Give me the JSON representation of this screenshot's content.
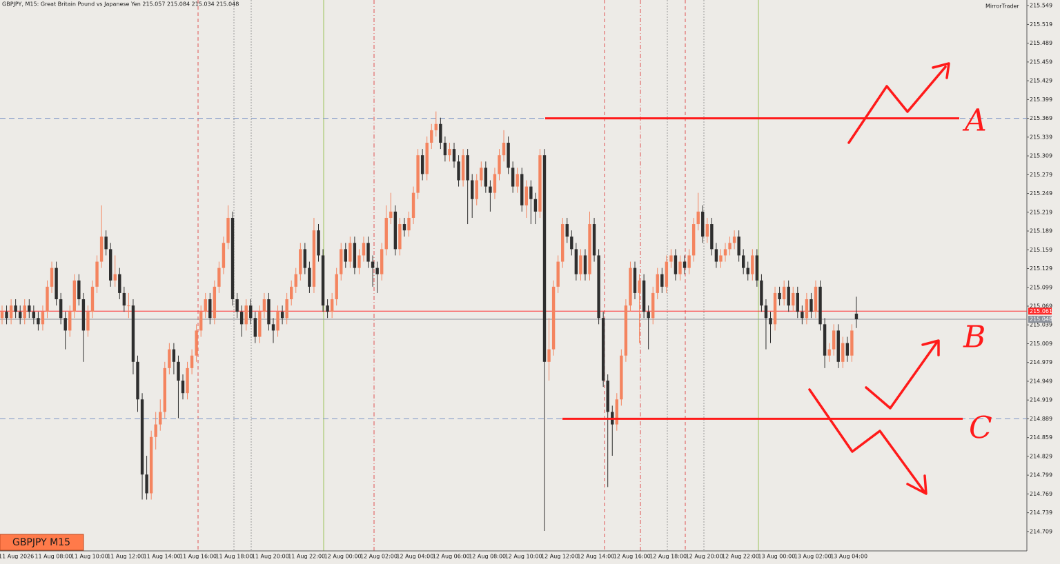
{
  "header": "GBPJPY, M15:  Great Britain Pound vs Japanese Yen  215.057 215.084 215.034 215.048",
  "brand": "MirrorTrader",
  "symbol_tag": "GBPJPY M15",
  "chart_data": {
    "type": "candlestick",
    "up_color": "#f4845f",
    "down_color": "#2e2e2e",
    "ylim": [
      214.678,
      215.558
    ],
    "yticks": [
      215.549,
      215.519,
      215.489,
      215.459,
      215.429,
      215.399,
      215.369,
      215.339,
      215.309,
      215.279,
      215.249,
      215.219,
      215.189,
      215.159,
      215.129,
      215.099,
      215.069,
      215.039,
      215.009,
      214.979,
      214.949,
      214.919,
      214.889,
      214.859,
      214.829,
      214.799,
      214.769,
      214.739,
      214.709
    ],
    "time_labels": [
      "11 Aug 2026",
      "11 Aug 08:00",
      "11 Aug 10:00",
      "11 Aug 12:00",
      "11 Aug 14:00",
      "11 Aug 16:00",
      "11 Aug 18:00",
      "11 Aug 20:00",
      "11 Aug 22:00",
      "12 Aug 00:00",
      "12 Aug 02:00",
      "12 Aug 04:00",
      "12 Aug 06:00",
      "12 Aug 08:00",
      "12 Aug 10:00",
      "12 Aug 12:00",
      "12 Aug 14:00",
      "12 Aug 16:00",
      "12 Aug 18:00",
      "12 Aug 20:00",
      "12 Aug 22:00",
      "13 Aug 00:00",
      "13 Aug 02:00",
      "13 Aug 04:00"
    ],
    "levels": [
      215.369,
      214.889
    ],
    "level_color": "#7b93c6",
    "price_lines": [
      {
        "value": 215.061,
        "color": "#ff2a2a"
      },
      {
        "value": 215.048,
        "color": "#8a8f99"
      }
    ],
    "annotations": [
      {
        "label": "A",
        "value": 215.369
      },
      {
        "label": "B"
      },
      {
        "label": "C",
        "value": 214.889
      }
    ],
    "annotation_color": "#ff1a1a",
    "candles": [
      [
        215.05,
        215.07,
        215.04,
        215.06
      ],
      [
        215.06,
        215.07,
        215.04,
        215.05
      ],
      [
        215.05,
        215.08,
        215.04,
        215.07
      ],
      [
        215.07,
        215.08,
        215.05,
        215.06
      ],
      [
        215.06,
        215.07,
        215.04,
        215.05
      ],
      [
        215.05,
        215.08,
        215.04,
        215.07
      ],
      [
        215.07,
        215.08,
        215.05,
        215.06
      ],
      [
        215.06,
        215.07,
        215.04,
        215.05
      ],
      [
        215.05,
        215.06,
        215.03,
        215.04
      ],
      [
        215.04,
        215.07,
        215.03,
        215.06
      ],
      [
        215.06,
        215.11,
        215.05,
        215.1
      ],
      [
        215.1,
        215.14,
        215.09,
        215.13
      ],
      [
        215.13,
        215.14,
        215.07,
        215.08
      ],
      [
        215.08,
        215.09,
        215.04,
        215.05
      ],
      [
        215.05,
        215.06,
        215.0,
        215.03
      ],
      [
        215.03,
        215.07,
        215.02,
        215.06
      ],
      [
        215.06,
        215.12,
        215.05,
        215.11
      ],
      [
        215.11,
        215.12,
        215.07,
        215.08
      ],
      [
        215.08,
        215.09,
        214.98,
        215.03
      ],
      [
        215.03,
        215.07,
        215.02,
        215.06
      ],
      [
        215.06,
        215.11,
        215.05,
        215.1
      ],
      [
        215.1,
        215.15,
        215.09,
        215.14
      ],
      [
        215.14,
        215.23,
        215.13,
        215.18
      ],
      [
        215.18,
        215.19,
        215.15,
        215.16
      ],
      [
        215.16,
        215.17,
        215.1,
        215.11
      ],
      [
        215.11,
        215.15,
        215.1,
        215.12
      ],
      [
        215.12,
        215.13,
        215.08,
        215.09
      ],
      [
        215.09,
        215.1,
        215.06,
        215.07
      ],
      [
        215.07,
        215.09,
        215.05,
        215.07
      ],
      [
        215.07,
        215.08,
        214.96,
        214.98
      ],
      [
        214.98,
        214.99,
        214.9,
        214.92
      ],
      [
        214.92,
        214.93,
        214.76,
        214.8
      ],
      [
        214.8,
        214.83,
        214.76,
        214.77
      ],
      [
        214.77,
        214.87,
        214.76,
        214.86
      ],
      [
        214.86,
        214.9,
        214.84,
        214.88
      ],
      [
        214.88,
        214.92,
        214.87,
        214.9
      ],
      [
        214.9,
        214.98,
        214.89,
        214.97
      ],
      [
        214.97,
        215.01,
        214.96,
        215.0
      ],
      [
        215.0,
        215.01,
        214.96,
        214.98
      ],
      [
        214.98,
        214.99,
        214.89,
        214.95
      ],
      [
        214.95,
        214.96,
        214.92,
        214.93
      ],
      [
        214.93,
        214.98,
        214.92,
        214.97
      ],
      [
        214.97,
        215.0,
        214.96,
        214.99
      ],
      [
        214.99,
        215.04,
        214.98,
        215.03
      ],
      [
        215.03,
        215.07,
        215.02,
        215.06
      ],
      [
        215.06,
        215.09,
        215.05,
        215.08
      ],
      [
        215.08,
        215.09,
        215.04,
        215.05
      ],
      [
        215.05,
        215.11,
        215.04,
        215.1
      ],
      [
        215.1,
        215.14,
        215.09,
        215.13
      ],
      [
        215.13,
        215.18,
        215.12,
        215.17
      ],
      [
        215.17,
        215.23,
        215.16,
        215.21
      ],
      [
        215.21,
        215.22,
        215.07,
        215.08
      ],
      [
        215.08,
        215.09,
        215.05,
        215.06
      ],
      [
        215.06,
        215.07,
        215.02,
        215.04
      ],
      [
        215.04,
        215.08,
        215.03,
        215.07
      ],
      [
        215.07,
        215.08,
        215.04,
        215.05
      ],
      [
        215.05,
        215.06,
        215.01,
        215.02
      ],
      [
        215.02,
        215.07,
        215.01,
        215.06
      ],
      [
        215.06,
        215.09,
        215.05,
        215.08
      ],
      [
        215.08,
        215.09,
        215.03,
        215.04
      ],
      [
        215.04,
        215.05,
        215.01,
        215.03
      ],
      [
        215.03,
        215.07,
        215.02,
        215.06
      ],
      [
        215.06,
        215.07,
        215.04,
        215.05
      ],
      [
        215.05,
        215.09,
        215.04,
        215.08
      ],
      [
        215.08,
        215.11,
        215.07,
        215.1
      ],
      [
        215.1,
        215.13,
        215.09,
        215.12
      ],
      [
        215.12,
        215.17,
        215.11,
        215.16
      ],
      [
        215.16,
        215.17,
        215.12,
        215.13
      ],
      [
        215.13,
        215.14,
        215.09,
        215.1
      ],
      [
        215.1,
        215.21,
        215.09,
        215.19
      ],
      [
        215.19,
        215.2,
        215.14,
        215.15
      ],
      [
        215.15,
        215.16,
        215.06,
        215.07
      ],
      [
        215.07,
        215.08,
        215.05,
        215.06
      ],
      [
        215.06,
        215.09,
        215.05,
        215.08
      ],
      [
        215.08,
        215.13,
        215.07,
        215.12
      ],
      [
        215.12,
        215.17,
        215.11,
        215.16
      ],
      [
        215.16,
        215.17,
        215.13,
        215.14
      ],
      [
        215.14,
        215.18,
        215.13,
        215.17
      ],
      [
        215.17,
        215.18,
        215.12,
        215.13
      ],
      [
        215.13,
        215.16,
        215.12,
        215.15
      ],
      [
        215.15,
        215.18,
        215.14,
        215.17
      ],
      [
        215.17,
        215.18,
        215.13,
        215.14
      ],
      [
        215.14,
        215.15,
        215.1,
        215.13
      ],
      [
        215.13,
        215.14,
        215.09,
        215.12
      ],
      [
        215.12,
        215.17,
        215.11,
        215.16
      ],
      [
        215.16,
        215.23,
        215.15,
        215.21
      ],
      [
        215.21,
        215.25,
        215.2,
        215.22
      ],
      [
        215.22,
        215.23,
        215.15,
        215.16
      ],
      [
        215.16,
        215.21,
        215.15,
        215.2
      ],
      [
        215.2,
        215.21,
        215.18,
        215.19
      ],
      [
        215.19,
        215.22,
        215.18,
        215.21
      ],
      [
        215.21,
        215.26,
        215.2,
        215.25
      ],
      [
        215.25,
        215.32,
        215.24,
        215.31
      ],
      [
        215.31,
        215.32,
        215.27,
        215.28
      ],
      [
        215.28,
        215.34,
        215.27,
        215.33
      ],
      [
        215.33,
        215.36,
        215.32,
        215.35
      ],
      [
        215.35,
        215.38,
        215.34,
        215.36
      ],
      [
        215.36,
        215.37,
        215.32,
        215.33
      ],
      [
        215.33,
        215.34,
        215.3,
        215.31
      ],
      [
        215.31,
        215.33,
        215.3,
        215.32
      ],
      [
        215.32,
        215.33,
        215.29,
        215.3
      ],
      [
        215.3,
        215.31,
        215.26,
        215.27
      ],
      [
        215.27,
        215.32,
        215.26,
        215.31
      ],
      [
        215.31,
        215.32,
        215.2,
        215.27
      ],
      [
        215.27,
        215.28,
        215.21,
        215.24
      ],
      [
        215.24,
        215.28,
        215.23,
        215.27
      ],
      [
        215.27,
        215.3,
        215.26,
        215.29
      ],
      [
        215.29,
        215.3,
        215.25,
        215.26
      ],
      [
        215.26,
        215.27,
        215.22,
        215.25
      ],
      [
        215.25,
        215.29,
        215.24,
        215.28
      ],
      [
        215.28,
        215.32,
        215.27,
        215.31
      ],
      [
        215.31,
        215.35,
        215.3,
        215.33
      ],
      [
        215.33,
        215.34,
        215.28,
        215.29
      ],
      [
        215.29,
        215.3,
        215.25,
        215.26
      ],
      [
        215.26,
        215.29,
        215.25,
        215.28
      ],
      [
        215.28,
        215.29,
        215.22,
        215.23
      ],
      [
        215.23,
        215.27,
        215.21,
        215.26
      ],
      [
        215.26,
        215.27,
        215.2,
        215.24
      ],
      [
        215.24,
        215.25,
        215.2,
        215.22
      ],
      [
        215.22,
        215.32,
        215.21,
        215.31
      ],
      [
        215.31,
        215.32,
        214.71,
        214.98
      ],
      [
        214.98,
        215.05,
        214.95,
        215.0
      ],
      [
        215.0,
        215.11,
        214.99,
        215.1
      ],
      [
        215.1,
        215.15,
        215.09,
        215.14
      ],
      [
        215.14,
        215.21,
        215.13,
        215.2
      ],
      [
        215.2,
        215.21,
        215.17,
        215.18
      ],
      [
        215.18,
        215.19,
        215.15,
        215.16
      ],
      [
        215.16,
        215.17,
        215.11,
        215.12
      ],
      [
        215.12,
        215.16,
        215.11,
        215.15
      ],
      [
        215.15,
        215.16,
        215.11,
        215.12
      ],
      [
        215.12,
        215.22,
        215.11,
        215.2
      ],
      [
        215.2,
        215.21,
        215.14,
        215.15
      ],
      [
        215.15,
        215.16,
        215.04,
        215.05
      ],
      [
        215.05,
        215.06,
        214.94,
        214.95
      ],
      [
        214.95,
        214.96,
        214.78,
        214.9
      ],
      [
        214.9,
        214.91,
        214.83,
        214.88
      ],
      [
        214.88,
        214.93,
        214.87,
        214.92
      ],
      [
        214.92,
        215.0,
        214.91,
        214.99
      ],
      [
        214.99,
        215.08,
        214.98,
        215.07
      ],
      [
        215.07,
        215.14,
        215.06,
        215.13
      ],
      [
        215.13,
        215.14,
        215.08,
        215.09
      ],
      [
        215.09,
        215.12,
        215.01,
        215.11
      ],
      [
        215.11,
        215.12,
        215.05,
        215.06
      ],
      [
        215.06,
        215.07,
        215.0,
        215.05
      ],
      [
        215.05,
        215.1,
        215.04,
        215.09
      ],
      [
        215.09,
        215.13,
        215.08,
        215.12
      ],
      [
        215.12,
        215.13,
        215.09,
        215.1
      ],
      [
        215.1,
        215.15,
        215.09,
        215.14
      ],
      [
        215.14,
        215.16,
        215.13,
        215.15
      ],
      [
        215.15,
        215.16,
        215.11,
        215.12
      ],
      [
        215.12,
        215.15,
        215.11,
        215.14
      ],
      [
        215.14,
        215.15,
        215.12,
        215.13
      ],
      [
        215.13,
        215.16,
        215.12,
        215.15
      ],
      [
        215.15,
        215.21,
        215.14,
        215.2
      ],
      [
        215.2,
        215.25,
        215.19,
        215.22
      ],
      [
        215.22,
        215.23,
        215.17,
        215.18
      ],
      [
        215.18,
        215.21,
        215.17,
        215.2
      ],
      [
        215.2,
        215.21,
        215.15,
        215.16
      ],
      [
        215.16,
        215.17,
        215.13,
        215.14
      ],
      [
        215.14,
        215.16,
        215.13,
        215.15
      ],
      [
        215.15,
        215.17,
        215.14,
        215.16
      ],
      [
        215.16,
        215.18,
        215.15,
        215.17
      ],
      [
        215.17,
        215.19,
        215.16,
        215.18
      ],
      [
        215.18,
        215.19,
        215.14,
        215.15
      ],
      [
        215.15,
        215.16,
        215.12,
        215.13
      ],
      [
        215.13,
        215.14,
        215.11,
        215.12
      ],
      [
        215.12,
        215.16,
        215.11,
        215.15
      ],
      [
        215.15,
        215.16,
        215.1,
        215.11
      ],
      [
        215.11,
        215.12,
        215.06,
        215.07
      ],
      [
        215.07,
        215.08,
        215.0,
        215.05
      ],
      [
        215.05,
        215.06,
        215.01,
        215.04
      ],
      [
        215.04,
        215.1,
        215.03,
        215.09
      ],
      [
        215.09,
        215.1,
        215.07,
        215.08
      ],
      [
        215.08,
        215.11,
        215.07,
        215.1
      ],
      [
        215.1,
        215.11,
        215.06,
        215.07
      ],
      [
        215.07,
        215.1,
        215.06,
        215.09
      ],
      [
        215.09,
        215.1,
        215.05,
        215.06
      ],
      [
        215.06,
        215.07,
        215.04,
        215.05
      ],
      [
        215.05,
        215.09,
        215.04,
        215.08
      ],
      [
        215.08,
        215.09,
        215.05,
        215.06
      ],
      [
        215.06,
        215.11,
        215.05,
        215.1
      ],
      [
        215.1,
        215.11,
        215.03,
        215.04
      ],
      [
        215.04,
        215.05,
        214.97,
        214.99
      ],
      [
        214.99,
        215.01,
        214.98,
        215.0
      ],
      [
        215.0,
        215.04,
        214.99,
        215.03
      ],
      [
        215.03,
        215.04,
        214.97,
        214.98
      ],
      [
        214.98,
        215.02,
        214.97,
        215.01
      ],
      [
        215.01,
        215.02,
        214.98,
        214.99
      ],
      [
        214.99,
        215.04,
        214.98,
        215.03
      ],
      [
        215.057,
        215.084,
        215.034,
        215.048
      ]
    ]
  }
}
